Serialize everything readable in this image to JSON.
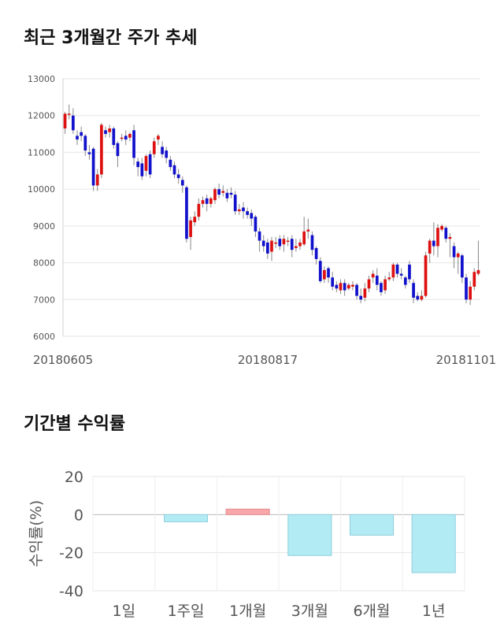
{
  "sections": {
    "price_title": "최근 3개월간 주가 추세",
    "return_title": "기간별 수익률"
  },
  "chart_data": [
    {
      "type": "candlestick",
      "title": "최근 3개월간 주가 추세",
      "ylim": [
        6000,
        13000
      ],
      "y_ticks": [
        6000,
        7000,
        8000,
        9000,
        10000,
        11000,
        12000,
        13000
      ],
      "x_labels": [
        "20180605",
        "20180817",
        "20181101"
      ],
      "grid": true,
      "colors": {
        "up": "#dd1111",
        "down": "#1111cc",
        "wick": "#888888"
      },
      "candles": [
        [
          11650,
          12050,
          12100,
          11500
        ],
        [
          12050,
          12050,
          12300,
          11900
        ],
        [
          12000,
          11600,
          12200,
          11500
        ],
        [
          11450,
          11350,
          11600,
          11200
        ],
        [
          11550,
          11450,
          11700,
          11300
        ],
        [
          11450,
          11050,
          11500,
          10900
        ],
        [
          11000,
          10950,
          11200,
          10800
        ],
        [
          11100,
          10100,
          11150,
          9950
        ],
        [
          10100,
          10400,
          10550,
          9950
        ],
        [
          10400,
          11750,
          11800,
          10300
        ],
        [
          11600,
          11500,
          11700,
          11400
        ],
        [
          11550,
          11650,
          11750,
          11400
        ],
        [
          11650,
          11200,
          11700,
          11100
        ],
        [
          11250,
          10900,
          11300,
          10600
        ],
        [
          11400,
          11400,
          11500,
          11300
        ],
        [
          11450,
          11350,
          11600,
          11200
        ],
        [
          11400,
          11500,
          11550,
          11300
        ],
        [
          11600,
          10850,
          11750,
          10650
        ],
        [
          10750,
          10600,
          10850,
          10350
        ],
        [
          10700,
          10350,
          10850,
          10250
        ],
        [
          10500,
          10900,
          10950,
          10350
        ],
        [
          10950,
          10400,
          11050,
          10300
        ],
        [
          10950,
          11300,
          11400,
          10850
        ],
        [
          11350,
          11450,
          11500,
          11200
        ],
        [
          11150,
          10950,
          11300,
          10850
        ],
        [
          11050,
          10850,
          11150,
          10700
        ],
        [
          10800,
          10600,
          10900,
          10500
        ],
        [
          10650,
          10400,
          10750,
          10300
        ],
        [
          10400,
          10300,
          10550,
          10150
        ],
        [
          10250,
          10100,
          10350,
          9900
        ],
        [
          10050,
          8650,
          10100,
          8550
        ],
        [
          8700,
          9150,
          9250,
          8350
        ],
        [
          9100,
          9250,
          9400,
          9000
        ],
        [
          9250,
          9600,
          9750,
          9150
        ],
        [
          9600,
          9700,
          9800,
          9500
        ],
        [
          9750,
          9600,
          9850,
          9400
        ],
        [
          9600,
          9750,
          9800,
          9500
        ],
        [
          9700,
          10000,
          10050,
          9600
        ],
        [
          10000,
          9850,
          10150,
          9750
        ],
        [
          9900,
          9950,
          10100,
          9800
        ],
        [
          9900,
          9750,
          10000,
          9650
        ],
        [
          9900,
          9850,
          10050,
          9750
        ],
        [
          9850,
          9400,
          9950,
          9300
        ],
        [
          9400,
          9450,
          9600,
          9300
        ],
        [
          9500,
          9400,
          9650,
          9200
        ],
        [
          9400,
          9300,
          9500,
          9200
        ],
        [
          9350,
          9200,
          9450,
          9000
        ],
        [
          9250,
          8850,
          9300,
          8700
        ],
        [
          8850,
          8600,
          8950,
          8300
        ],
        [
          8600,
          8450,
          8750,
          8300
        ],
        [
          8550,
          8250,
          8650,
          8100
        ],
        [
          8300,
          8600,
          8700,
          8050
        ],
        [
          8550,
          8550,
          8700,
          8400
        ],
        [
          8650,
          8450,
          8750,
          8350
        ],
        [
          8500,
          8650,
          8750,
          8300
        ],
        [
          8600,
          8600,
          8700,
          8450
        ],
        [
          8650,
          8350,
          8750,
          8150
        ],
        [
          8400,
          8450,
          8650,
          8300
        ],
        [
          8450,
          8550,
          8650,
          8350
        ],
        [
          8500,
          8850,
          9250,
          8450
        ],
        [
          8850,
          8900,
          9200,
          8650
        ],
        [
          8750,
          8350,
          8850,
          8200
        ],
        [
          8400,
          8100,
          8450,
          7950
        ],
        [
          8050,
          7500,
          8150,
          7450
        ],
        [
          7550,
          7800,
          7900,
          7450
        ],
        [
          7850,
          7600,
          7900,
          7450
        ],
        [
          7600,
          7350,
          7750,
          7250
        ],
        [
          7400,
          7300,
          7500,
          7200
        ],
        [
          7250,
          7450,
          7550,
          7150
        ],
        [
          7450,
          7250,
          7550,
          7100
        ],
        [
          7300,
          7400,
          7450,
          7250
        ],
        [
          7350,
          7400,
          7500,
          7250
        ],
        [
          7400,
          7100,
          7450,
          7000
        ],
        [
          7100,
          7000,
          7300,
          6900
        ],
        [
          7050,
          7300,
          7450,
          6950
        ],
        [
          7300,
          7550,
          7650,
          7200
        ],
        [
          7600,
          7700,
          7800,
          7450
        ],
        [
          7650,
          7400,
          7850,
          7250
        ],
        [
          7450,
          7200,
          7500,
          7100
        ],
        [
          7250,
          7550,
          7650,
          7150
        ],
        [
          7550,
          7600,
          7750,
          7500
        ],
        [
          7600,
          7950,
          8000,
          7500
        ],
        [
          7950,
          7700,
          8000,
          7600
        ],
        [
          7700,
          7650,
          7850,
          7550
        ],
        [
          7600,
          7400,
          7650,
          7300
        ],
        [
          7950,
          7550,
          8050,
          7450
        ],
        [
          7450,
          7050,
          7550,
          6900
        ],
        [
          7100,
          7000,
          7200,
          6950
        ],
        [
          7000,
          7100,
          7250,
          6950
        ],
        [
          7100,
          8200,
          8300,
          7050
        ],
        [
          8250,
          8600,
          8650,
          8000
        ],
        [
          8600,
          8450,
          9100,
          8200
        ],
        [
          8450,
          8950,
          9050,
          8150
        ],
        [
          8900,
          9000,
          9050,
          8850
        ],
        [
          8950,
          8650,
          9000,
          8550
        ],
        [
          8650,
          8700,
          8800,
          8150
        ],
        [
          8450,
          8150,
          8550,
          7850
        ],
        [
          8150,
          8250,
          8300,
          7700
        ],
        [
          8200,
          7600,
          8250,
          7450
        ],
        [
          7600,
          7000,
          7700,
          6900
        ],
        [
          7000,
          7350,
          7500,
          6850
        ],
        [
          7350,
          7750,
          7850,
          7250
        ],
        [
          7700,
          7800,
          8600,
          7650
        ]
      ]
    },
    {
      "type": "bar",
      "title": "기간별 수익률",
      "ylabel": "수익률(%)",
      "categories": [
        "1일",
        "1주일",
        "1개월",
        "3개월",
        "6개월",
        "1년"
      ],
      "values": [
        0,
        -3.8,
        2.9,
        -21.5,
        -10.8,
        -30.5
      ],
      "ylim": [
        -40,
        20
      ],
      "y_ticks": [
        -40,
        -20,
        0,
        20
      ],
      "grid": true,
      "colors": {
        "positive": "#f8a8aa",
        "negative": "#b3ebf4",
        "positive_edge": "#e48d90",
        "negative_edge": "#8fcfdc"
      }
    }
  ]
}
